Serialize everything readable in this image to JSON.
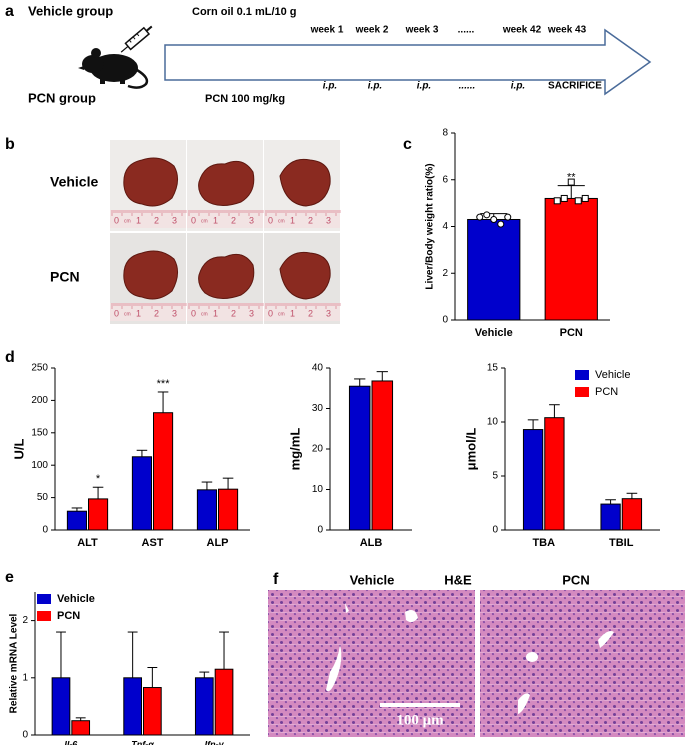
{
  "panel_labels": [
    "a",
    "b",
    "c",
    "d",
    "e",
    "f"
  ],
  "scheme": {
    "vehicle_group": "Vehicle group",
    "dose_vehicle": "Corn oil  0.1 mL/10 g",
    "pcn_group": "PCN group",
    "dose_pcn": "PCN 100 mg/kg",
    "weeks": [
      "week 1",
      "week 2",
      "week 3",
      "......",
      "week 42",
      "week 43"
    ],
    "injections": [
      "i.p.",
      "i.p.",
      "i.p.",
      "......",
      "i.p.",
      "SACRIFICE"
    ]
  },
  "photos": {
    "rows": [
      "Vehicle",
      "PCN"
    ],
    "ruler": [
      "0",
      "cm",
      "1",
      "2",
      "3"
    ]
  },
  "histology": {
    "titles": [
      "Vehicle",
      "PCN"
    ],
    "stain": "H&E",
    "scale_bar": "100 μm"
  },
  "chart_data": [
    {
      "type": "bar",
      "categories": [
        "Vehicle",
        "PCN"
      ],
      "ylabel": "Liver/Body weight ratio(%)",
      "series": [
        {
          "colors": [
            "#0000cc",
            "#ff0000"
          ],
          "values": [
            4.3,
            5.2
          ],
          "errors": [
            0.25,
            0.55
          ]
        }
      ],
      "points": [
        [
          4.4,
          4.5,
          4.3,
          4.1,
          4.4
        ],
        [
          5.1,
          5.2,
          5.9,
          5.1,
          5.2
        ]
      ],
      "annotations": [
        {
          "text": "**",
          "category": "PCN"
        }
      ],
      "ylim": [
        0,
        8
      ],
      "yticks": [
        0,
        2,
        4,
        6,
        8
      ]
    },
    {
      "type": "bar",
      "categories": [
        "ALT",
        "AST",
        "ALP"
      ],
      "ylabel": "U/L",
      "series": [
        {
          "color": "#0000cc",
          "values": [
            29,
            113,
            62
          ],
          "errors": [
            5,
            10,
            12
          ]
        },
        {
          "color": "#ff0000",
          "values": [
            48,
            181,
            63
          ],
          "errors": [
            18,
            32,
            17
          ]
        }
      ],
      "annotations": [
        {
          "text": "*",
          "category": "ALT"
        },
        {
          "text": "***",
          "category": "AST"
        }
      ],
      "ylim": [
        0,
        250
      ],
      "yticks": [
        0,
        50,
        100,
        150,
        200,
        250
      ]
    },
    {
      "type": "bar",
      "categories": [
        "ALB"
      ],
      "ylabel": "mg/mL",
      "series": [
        {
          "color": "#0000cc",
          "values": [
            35.5
          ],
          "errors": [
            1.8
          ]
        },
        {
          "color": "#ff0000",
          "values": [
            36.8
          ],
          "errors": [
            2.3
          ]
        }
      ],
      "ylim": [
        0,
        40
      ],
      "yticks": [
        0,
        10,
        20,
        30,
        40
      ]
    },
    {
      "type": "bar",
      "categories": [
        "TBA",
        "TBIL"
      ],
      "ylabel": "μmol/L",
      "series": [
        {
          "name": "Vehicle",
          "color": "#0000cc",
          "values": [
            9.3,
            2.4
          ],
          "errors": [
            0.9,
            0.4
          ]
        },
        {
          "name": "PCN",
          "color": "#ff0000",
          "values": [
            10.4,
            2.9
          ],
          "errors": [
            1.2,
            0.5
          ]
        }
      ],
      "legend": "top-right",
      "ylim": [
        0,
        15
      ],
      "yticks": [
        0,
        5,
        10,
        15
      ]
    },
    {
      "type": "bar",
      "categories": [
        "Il-6",
        "Tnf-α",
        "Ifn-γ"
      ],
      "category_style": "italic",
      "ylabel": "Relative mRNA Level",
      "series": [
        {
          "name": "Vehicle",
          "color": "#0000cc",
          "values": [
            1.0,
            1.0,
            1.0
          ],
          "errors": [
            0.8,
            0.8,
            0.1
          ]
        },
        {
          "name": "PCN",
          "color": "#ff0000",
          "values": [
            0.25,
            0.83,
            1.15
          ],
          "errors": [
            0.05,
            0.35,
            0.65
          ]
        }
      ],
      "legend": "top-left",
      "legend_style": "bold",
      "ylim": [
        0,
        2.5
      ],
      "yticks": [
        0,
        1,
        2
      ]
    }
  ]
}
